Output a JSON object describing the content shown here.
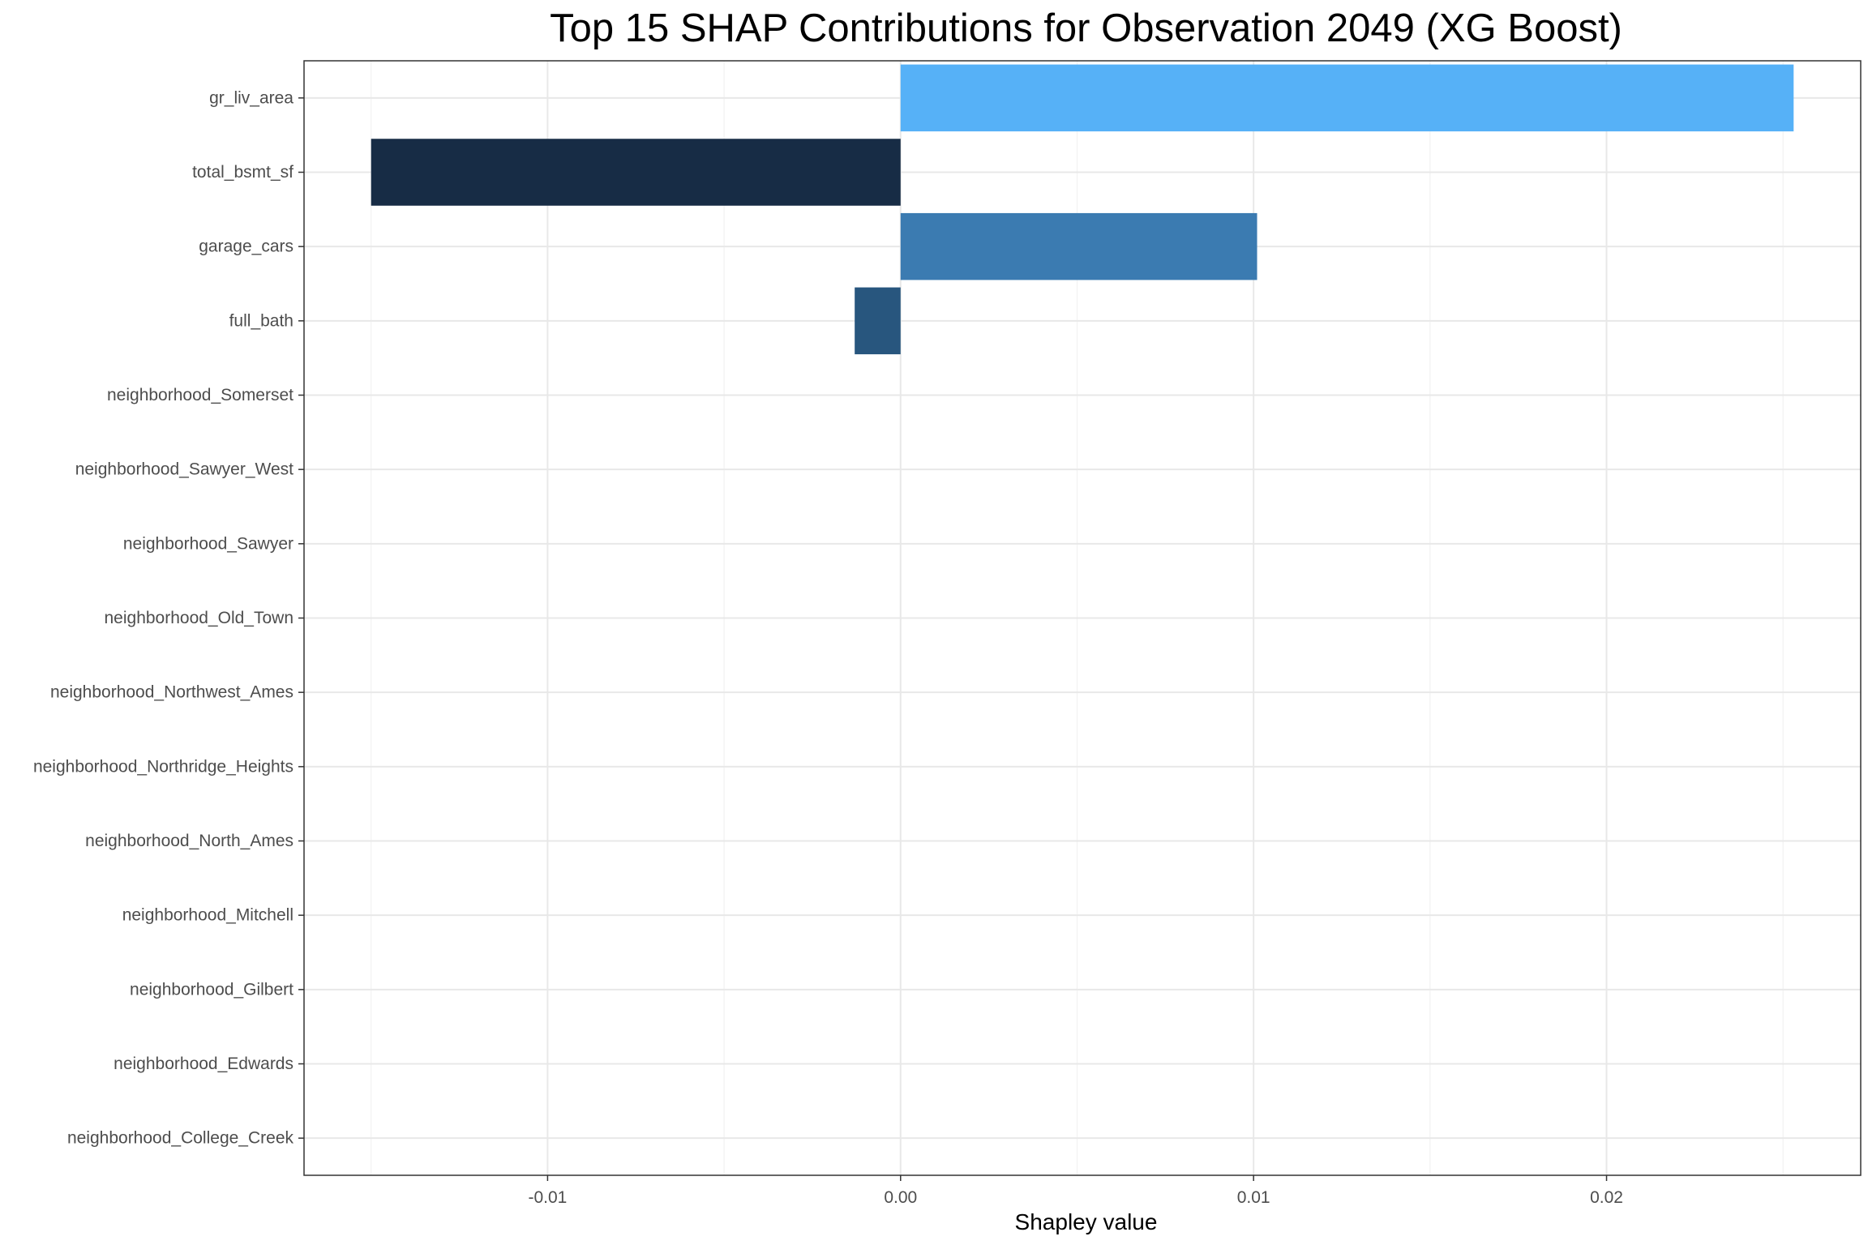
{
  "chart_data": {
    "type": "bar",
    "orientation": "horizontal",
    "title": "Top 15 SHAP Contributions for Observation 2049 (XG Boost)",
    "xlabel": "Shapley value",
    "ylabel": "",
    "xlim": [
      -0.0169,
      0.0272
    ],
    "x_ticks": [
      -0.01,
      0.0,
      0.01,
      0.02
    ],
    "x_tick_labels": [
      "-0.01",
      "0.00",
      "0.01",
      "0.02"
    ],
    "grid": true,
    "legend": "none",
    "categories": [
      "gr_liv_area",
      "total_bsmt_sf",
      "garage_cars",
      "full_bath",
      "neighborhood_Somerset",
      "neighborhood_Sawyer_West",
      "neighborhood_Sawyer",
      "neighborhood_Old_Town",
      "neighborhood_Northwest_Ames",
      "neighborhood_Northridge_Heights",
      "neighborhood_North_Ames",
      "neighborhood_Mitchell",
      "neighborhood_Gilbert",
      "neighborhood_Edwards",
      "neighborhood_College_Creek"
    ],
    "values": [
      0.0253,
      -0.015,
      0.0101,
      -0.0013,
      0,
      0,
      0,
      0,
      0,
      0,
      0,
      0,
      0,
      0,
      0
    ],
    "bar_colors": [
      "#56b1f7",
      "#172c45",
      "#3b7bb1",
      "#28567e",
      "#132b43",
      "#132b43",
      "#132b43",
      "#132b43",
      "#132b43",
      "#132b43",
      "#132b43",
      "#132b43",
      "#132b43",
      "#132b43",
      "#132b43"
    ]
  }
}
